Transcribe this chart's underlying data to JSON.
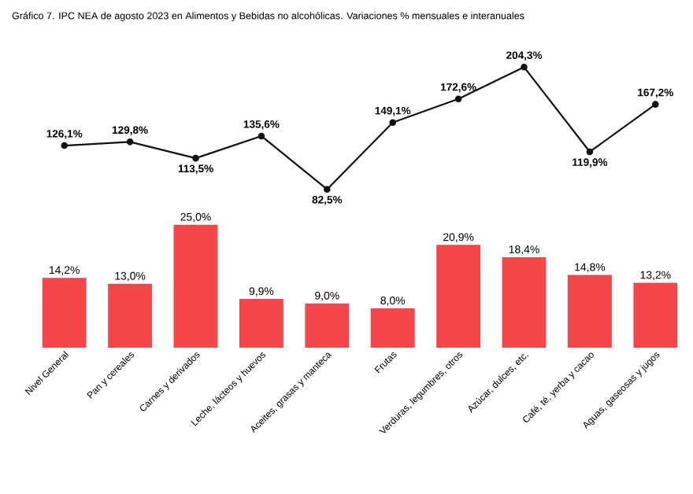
{
  "chart_data": [
    {
      "type": "line",
      "title": "Gráfico 7. IPC NEA de agosto 2023 en Alimentos y Bebidas no alcohólicas. Variaciones % mensuales e interanuales",
      "categories": [
        null,
        null,
        null,
        null,
        null,
        null,
        null,
        null,
        null,
        null
      ],
      "series": [
        {
          "color": "#111111",
          "values": [
            126.1,
            129.8,
            113.5,
            135.6,
            82.5,
            149.1,
            172.6,
            204.3,
            119.9,
            167.2
          ],
          "value_labels": [
            "126,1%",
            "129,8%",
            "113,5%",
            "135,6%",
            "82,5%",
            "149,1%",
            "172,6%",
            "204,3%",
            "119,9%",
            "167,2%"
          ]
        }
      ],
      "marker": "circle",
      "tick_labels": false
    },
    {
      "type": "bar",
      "categories": [
        "Nivel General",
        "Pan y cereales",
        "Carnes y derivados",
        "Leche, lácteos y huevos",
        "Aceites, grasas y manteca",
        "Frutas",
        "Verduras, legumbres, otros",
        "Azúcar, dulces, etc.",
        "Café, té, yerba y cacao",
        "Aguas, gaseosas y jugos"
      ],
      "series": [
        {
          "color": "#f5474b",
          "values": [
            14.2,
            13.0,
            25.0,
            9.9,
            9.0,
            8.0,
            20.9,
            18.4,
            14.8,
            13.2
          ],
          "value_labels": [
            "14,2%",
            "13,0%",
            "25,0%",
            "9,9%",
            "9,0%",
            "8,0%",
            "20,9%",
            "18,4%",
            "14,8%",
            "13,2%"
          ]
        }
      ],
      "tick_labels": "x"
    }
  ]
}
